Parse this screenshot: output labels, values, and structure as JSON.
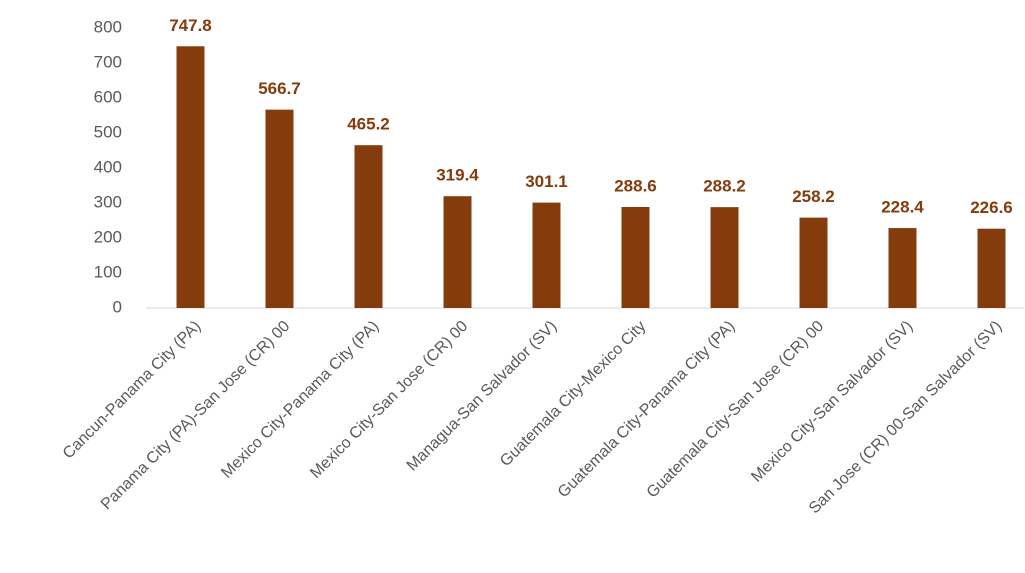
{
  "chart_data": {
    "type": "bar",
    "categories": [
      "Cancun-Panama City (PA)",
      "Panama City (PA)-San Jose (CR) 00",
      "Mexico City-Panama City (PA)",
      "Mexico City-San Jose (CR) 00",
      "Managua-San Salvador (SV)",
      "Guatemala City-Mexico City",
      "Guatemala City-Panama City (PA)",
      "Guatemala City-San Jose (CR) 00",
      "Mexico City-San Salvador (SV)",
      "San Jose (CR) 00-San Salvador (SV)"
    ],
    "values": [
      747.8,
      566.7,
      465.2,
      319.4,
      301.1,
      288.6,
      288.2,
      258.2,
      228.4,
      226.6
    ],
    "color": "#843C0C",
    "ylim": [
      0,
      800
    ],
    "yticks": [
      0,
      100,
      200,
      300,
      400,
      500,
      600,
      700,
      800
    ],
    "grid": false
  }
}
